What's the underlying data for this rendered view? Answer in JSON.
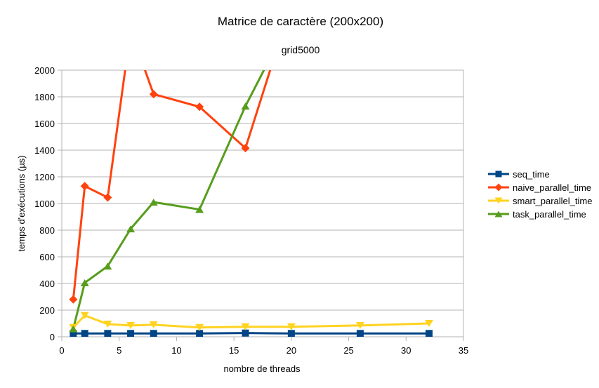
{
  "chart_data": {
    "type": "line",
    "title": "Matrice de caractère (200x200)",
    "subtitle": "grid5000",
    "xlabel": "nombre de threads",
    "ylabel": "temps d'exécutions (µs)",
    "xlim": [
      0,
      35
    ],
    "ylim": [
      0,
      2000
    ],
    "x_ticks": [
      0,
      5,
      10,
      15,
      20,
      25,
      30,
      35
    ],
    "y_ticks": [
      0,
      200,
      400,
      600,
      800,
      1000,
      1200,
      1400,
      1600,
      1800,
      2000
    ],
    "grid": true,
    "legend_position": "right",
    "series": [
      {
        "name": "seq_time",
        "color": "#004586",
        "marker": "square",
        "x": [
          1,
          2,
          4,
          6,
          8,
          12,
          16,
          20,
          26,
          32
        ],
        "y": [
          25,
          25,
          25,
          25,
          25,
          25,
          28,
          25,
          25,
          25
        ]
      },
      {
        "name": "naive_parallel_time",
        "color": "#ff420e",
        "marker": "diamond",
        "x": [
          1,
          2,
          4,
          6,
          8,
          12,
          16,
          20
        ],
        "y": [
          280,
          1130,
          1045,
          2300,
          1820,
          1725,
          1415,
          2500
        ]
      },
      {
        "name": "smart_parallel_time",
        "color": "#ffd320",
        "marker": "triangle-down",
        "x": [
          1,
          2,
          4,
          6,
          8,
          12,
          16,
          20,
          26,
          32
        ],
        "y": [
          70,
          160,
          95,
          85,
          90,
          70,
          75,
          75,
          85,
          100
        ]
      },
      {
        "name": "task_parallel_time",
        "color": "#579d1c",
        "marker": "triangle-up",
        "x": [
          1,
          2,
          4,
          6,
          8,
          12,
          16,
          20
        ],
        "y": [
          60,
          405,
          530,
          810,
          1010,
          955,
          1730,
          2400
        ]
      }
    ]
  }
}
